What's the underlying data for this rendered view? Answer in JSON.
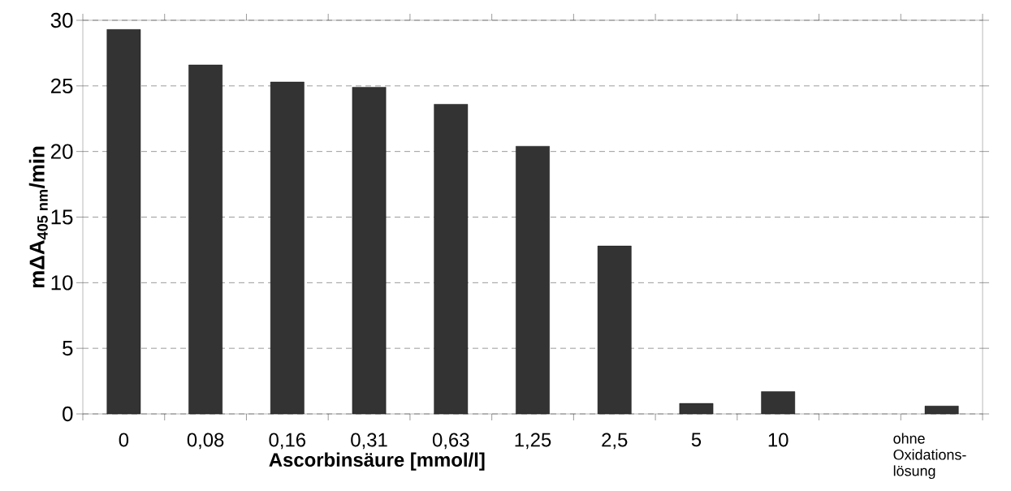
{
  "chart_data": {
    "type": "bar",
    "xlabel": "Ascorbinsäure [mmol/l]",
    "ylabel": "**mΔA$_{405 nm}$/min**",
    "categories": [
      "0",
      "0,08",
      "0,16",
      "0,31",
      "0,63",
      "1,25",
      "2,5",
      "5",
      "10",
      null,
      "ohne Oxidations-lösung"
    ],
    "values": [
      29.3,
      26.6,
      25.3,
      24.9,
      23.6,
      20.4,
      12.8,
      0.8,
      1.7,
      null,
      0.6
    ],
    "color": "#333333",
    "ylim": [
      0,
      30
    ],
    "yticks": [
      0,
      5,
      10,
      15,
      20,
      25,
      30
    ],
    "grid": "y"
  }
}
